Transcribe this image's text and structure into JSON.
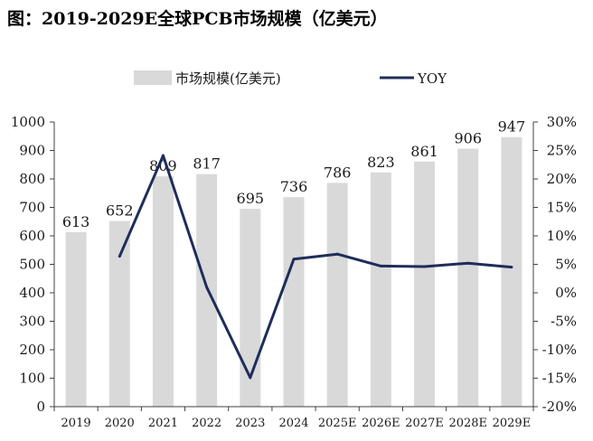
{
  "title": "图：2019-2029E全球PCB市场规模（亿美元）",
  "chart_data": {
    "type": "bar+line",
    "categories": [
      "2019",
      "2020",
      "2021",
      "2022",
      "2023",
      "2024",
      "2025E",
      "2026E",
      "2027E",
      "2028E",
      "2029E"
    ],
    "series": [
      {
        "name": "市场规模(亿美元)",
        "type": "bar",
        "axis": "left",
        "color": "#d9d9d9",
        "values": [
          613,
          652,
          809,
          817,
          695,
          736,
          786,
          823,
          861,
          906,
          947
        ],
        "labels": [
          "613",
          "652",
          "809",
          "817",
          "695",
          "736",
          "786",
          "823",
          "861",
          "906",
          "947"
        ]
      },
      {
        "name": "YOY",
        "type": "line",
        "axis": "right",
        "color": "#1f2d5a",
        "values": [
          null,
          6.4,
          24.1,
          1.0,
          -14.9,
          5.9,
          6.8,
          4.7,
          4.6,
          5.2,
          4.5
        ]
      }
    ],
    "left_axis": {
      "min": 0,
      "max": 1000,
      "step": 100,
      "ticks": [
        "0",
        "100",
        "200",
        "300",
        "400",
        "500",
        "600",
        "700",
        "800",
        "900",
        "1000"
      ]
    },
    "right_axis": {
      "min": -20,
      "max": 30,
      "step": 5,
      "ticks": [
        "-20%",
        "-15%",
        "-10%",
        "-5%",
        "0%",
        "5%",
        "10%",
        "15%",
        "20%",
        "25%",
        "30%"
      ]
    },
    "legend": {
      "position": "top",
      "items": [
        "市场规模(亿美元)",
        "YOY"
      ]
    },
    "grid": false
  }
}
